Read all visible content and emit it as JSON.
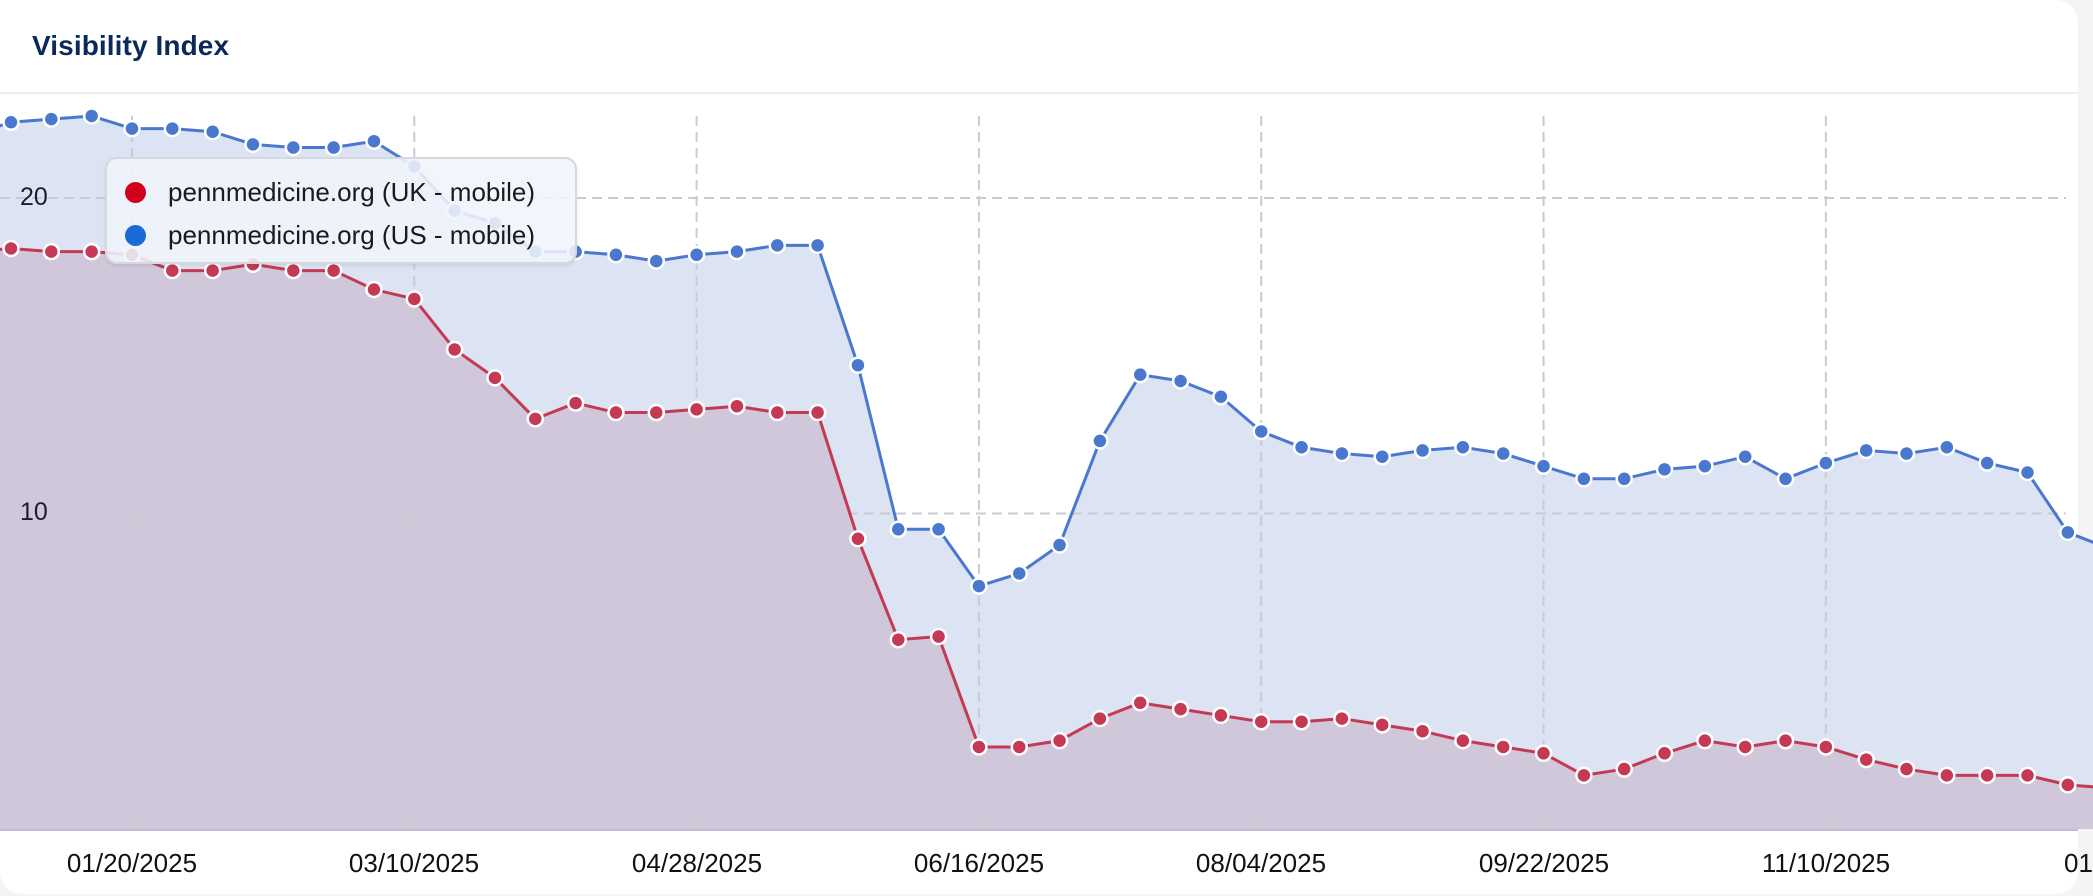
{
  "card": {
    "title": "Visibility Index"
  },
  "legend": {
    "items": [
      {
        "label": "pennmedicine.org (UK - mobile)",
        "color": "#d0021b"
      },
      {
        "label": "pennmedicine.org (US - mobile)",
        "color": "#1a6ad8"
      }
    ]
  },
  "y_axis": {
    "ticks": [
      {
        "label": "20",
        "value": 20
      },
      {
        "label": "10",
        "value": 10
      }
    ]
  },
  "x_axis": {
    "ticks": [
      {
        "label": "01/20/2025",
        "index": 3
      },
      {
        "label": "03/10/2025",
        "index": 10
      },
      {
        "label": "04/28/2025",
        "index": 17
      },
      {
        "label": "06/16/2025",
        "index": 24
      },
      {
        "label": "08/04/2025",
        "index": 31
      },
      {
        "label": "09/22/2025",
        "index": 38
      },
      {
        "label": "11/10/2025",
        "index": 45
      },
      {
        "label": "01",
        "index": 52
      }
    ]
  },
  "colors": {
    "uk_line": "#c43a55",
    "us_line": "#4a78cf",
    "uk_fill": "#d0c7db",
    "us_fill": "#dce3f2",
    "grid": "#c9cbd3"
  },
  "chart_data": {
    "type": "area",
    "title": "Visibility Index",
    "xlabel": "",
    "ylabel": "",
    "ylim": [
      0,
      23.5
    ],
    "grid": true,
    "legend_position": "top-left overlay",
    "x_interval": "weekly (Mondays)",
    "x_start": "12/30/2024",
    "tick_labels_x": [
      "01/20/2025",
      "03/10/2025",
      "04/28/2025",
      "06/16/2025",
      "08/04/2025",
      "09/22/2025",
      "11/10/2025",
      "01/..."
    ],
    "tick_labels_y": [
      "10",
      "20"
    ],
    "series": [
      {
        "name": "pennmedicine.org (UK - mobile)",
        "color": "#d0021b",
        "values": [
          18.4,
          18.3,
          18.3,
          18.2,
          17.7,
          17.7,
          17.9,
          17.7,
          17.7,
          17.1,
          16.8,
          15.2,
          14.3,
          13.0,
          13.5,
          13.2,
          13.2,
          13.3,
          13.4,
          13.2,
          13.2,
          9.2,
          6.0,
          6.1,
          2.6,
          2.6,
          2.8,
          3.5,
          4.0,
          3.8,
          3.6,
          3.4,
          3.4,
          3.5,
          3.3,
          3.1,
          2.8,
          2.6,
          2.4,
          1.7,
          1.9,
          2.4,
          2.8,
          2.6,
          2.8,
          2.6,
          2.2,
          1.9,
          1.7,
          1.7,
          1.7,
          1.4
        ]
      },
      {
        "name": "pennmedicine.org (US - mobile)",
        "color": "#1a6ad8",
        "values": [
          22.4,
          22.5,
          22.6,
          22.2,
          22.2,
          22.1,
          21.7,
          21.6,
          21.6,
          21.8,
          21.0,
          19.6,
          19.2,
          18.3,
          18.3,
          18.2,
          18.0,
          18.2,
          18.3,
          18.5,
          18.5,
          14.7,
          9.5,
          9.5,
          7.7,
          8.1,
          9.0,
          12.3,
          14.4,
          14.2,
          13.7,
          12.6,
          12.1,
          11.9,
          11.8,
          12.0,
          12.1,
          11.9,
          11.5,
          11.1,
          11.1,
          11.4,
          11.5,
          11.8,
          11.1,
          11.6,
          12.0,
          11.9,
          12.1,
          11.6,
          11.3,
          9.4
        ]
      }
    ]
  }
}
